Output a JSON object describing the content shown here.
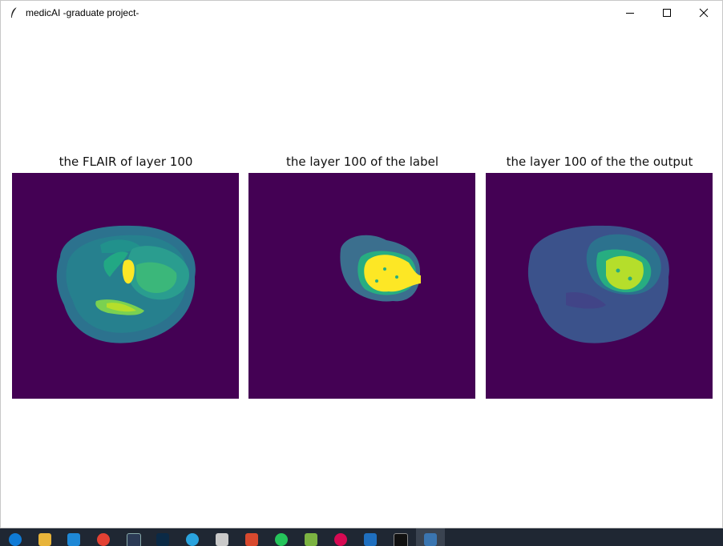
{
  "window": {
    "title": "medicAI -graduate project-",
    "icon": "feather-icon",
    "controls": [
      "minimize-icon",
      "maximize-icon",
      "close-icon"
    ]
  },
  "panels": [
    {
      "title": "the FLAIR of layer 100"
    },
    {
      "title": "the layer 100 of the label"
    },
    {
      "title": "the layer 100 of the the output"
    }
  ],
  "colors": {
    "background": "#440154",
    "brain_dark": "#3b528b",
    "brain_mid": "#2c728e",
    "brain_light": "#21918c",
    "edema": "#27ad81",
    "core": "#b5de2b",
    "enhancing": "#fde725"
  },
  "taskbar": {
    "icons": [
      "edge-icon",
      "file-explorer-icon",
      "vscode-icon",
      "chrome-icon",
      "vs-icon",
      "photoshop-icon",
      "telegram-icon",
      "app-icon",
      "app-p-icon",
      "whatsapp-icon",
      "app-grid-icon",
      "debian-icon",
      "app-l-icon",
      "terminal-icon",
      "python-icon"
    ]
  }
}
